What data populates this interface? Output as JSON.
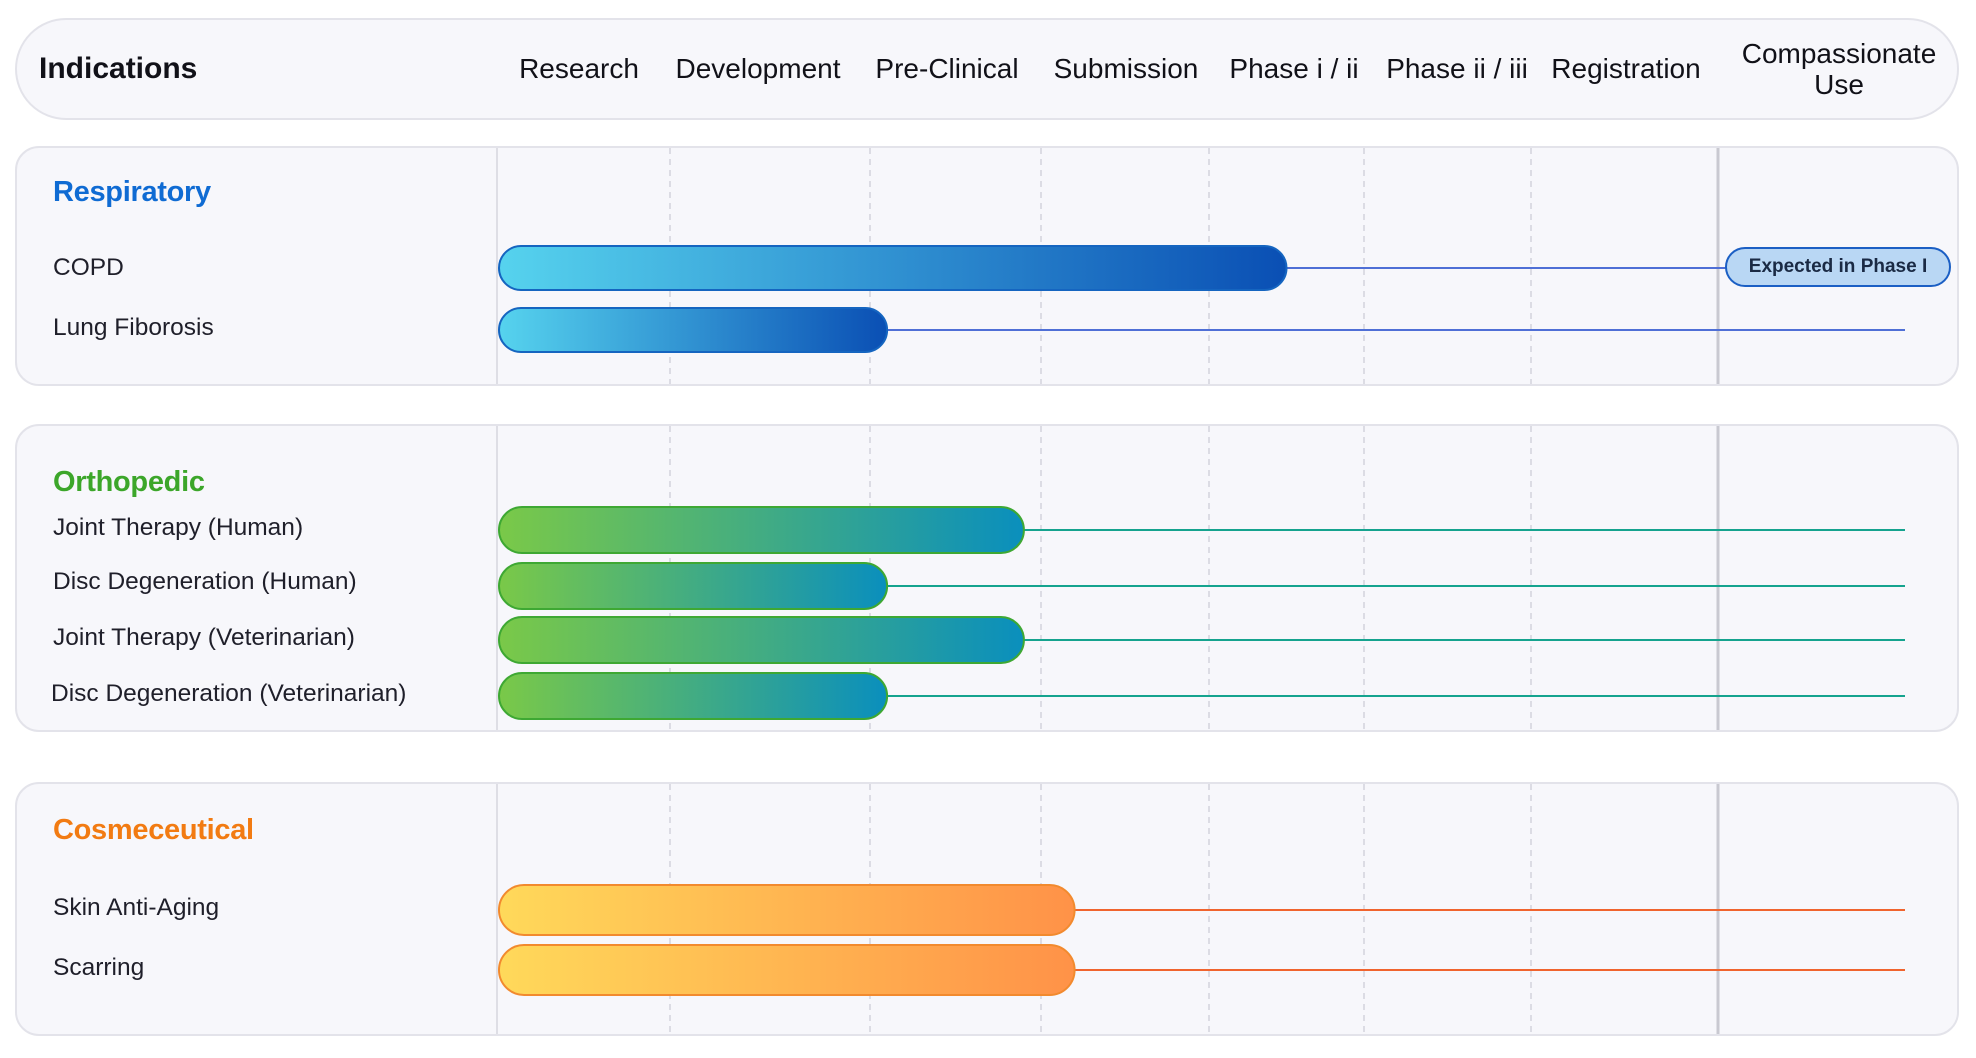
{
  "header": {
    "title": "Indications",
    "phases": [
      "Research",
      "Development",
      "Pre-Clinical",
      "Submission",
      "Phase i / ii",
      "Phase ii / iii",
      "Registration",
      "Compassionate Use"
    ]
  },
  "chart_data": {
    "type": "bar",
    "stages": [
      "Research",
      "Development",
      "Pre-Clinical",
      "Submission",
      "Phase i / ii",
      "Phase ii / iii",
      "Registration",
      "Compassionate Use"
    ],
    "value_unit": "stages completed",
    "groups": [
      {
        "name": "Respiratory",
        "color": "#0f6bd3",
        "gradient": [
          "#56d3ee",
          "#0a4fb4"
        ],
        "bar_border": "#1565c0",
        "track_color": "#4f6fd6",
        "items": [
          {
            "name": "COPD",
            "progress": 4.5,
            "status": "Expected in Phase I"
          },
          {
            "name": "Lung Fiborosis",
            "progress": 2.1
          }
        ]
      },
      {
        "name": "Orthopedic",
        "color": "#3ca62a",
        "gradient": [
          "#7ac948",
          "#0a8fbd"
        ],
        "bar_border": "#3ea833",
        "track_color": "#15a38e",
        "items": [
          {
            "name": "Joint Therapy (Human)",
            "progress": 2.9
          },
          {
            "name": "Disc Degeneration (Human)",
            "progress": 2.1
          },
          {
            "name": "Joint Therapy (Veterinarian)",
            "progress": 2.9
          },
          {
            "name": "Disc Degeneration (Veterinarian)",
            "progress": 2.1
          }
        ]
      },
      {
        "name": "Cosmeceutical",
        "color": "#f27b12",
        "gradient": [
          "#ffd95a",
          "#ff9248"
        ],
        "bar_border": "#f28a2e",
        "track_color": "#f0642e",
        "items": [
          {
            "name": "Skin Anti-Aging",
            "progress": 3.2
          },
          {
            "name": "Scarring",
            "progress": 3.2
          }
        ]
      }
    ]
  }
}
